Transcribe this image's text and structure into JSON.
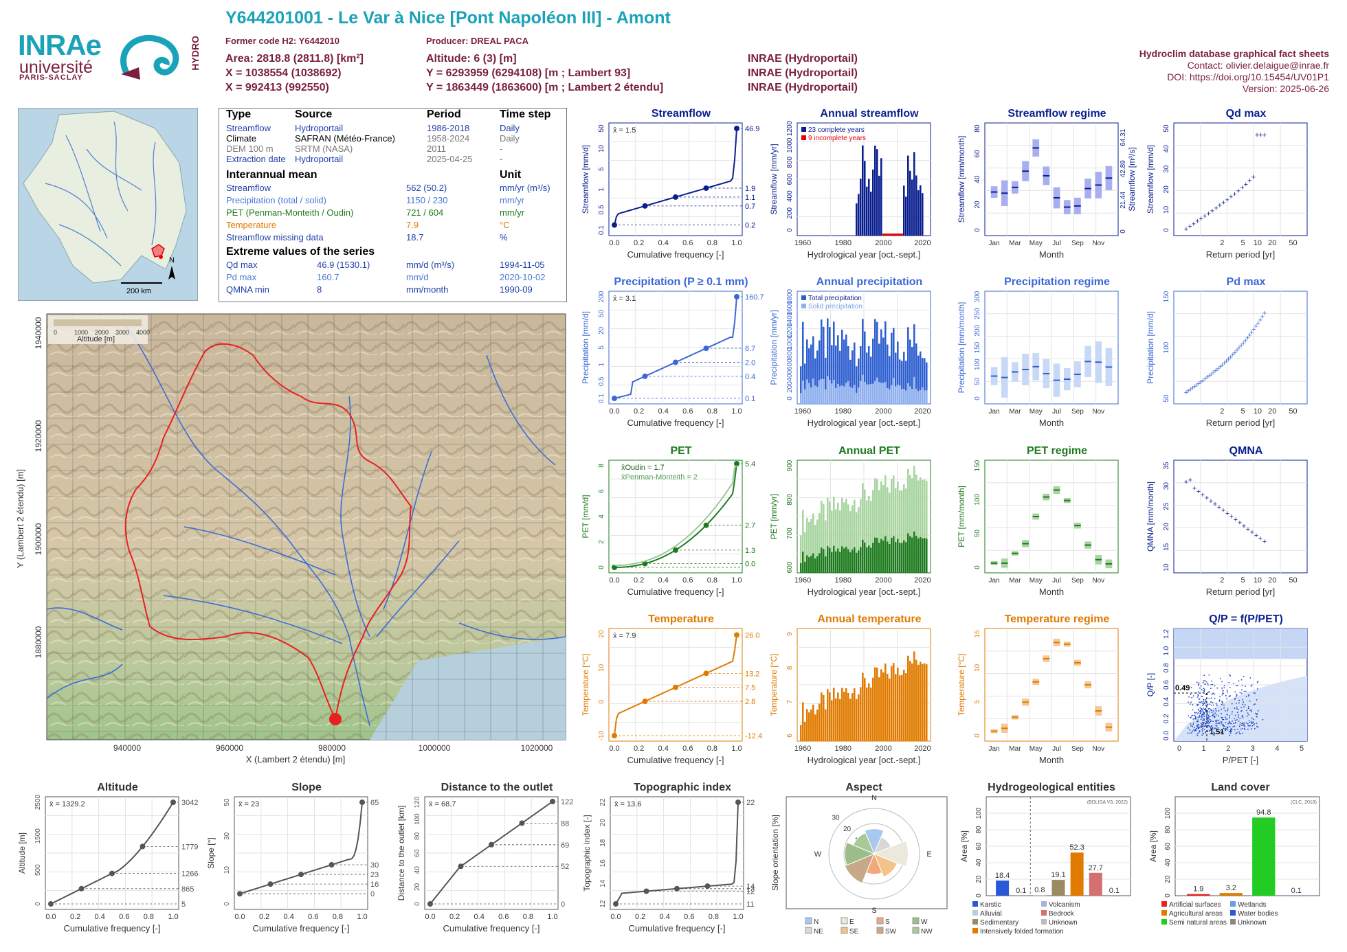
{
  "header": {
    "title": "Y644201001 - Le Var à Nice [Pont Napoléon III] - Amont",
    "former_code": "Former code H2: Y6442010",
    "producer": "Producer: DREAL PACA",
    "area": "Area: 2818.8 (2811.8) [km²]",
    "altitude": "Altitude: 6 (3) [m]",
    "x93": "X = 1038554 (1038692)",
    "y93": "Y = 6293959 (6294108) [m ; Lambert 93]",
    "x2e": "X = 992413 (992550)",
    "y2e": "Y = 1863449 (1863600) [m ; Lambert 2 étendu]",
    "source1": "INRAE (Hydroportail)",
    "source2": "INRAE (Hydroportail)",
    "source3": "INRAE (Hydroportail)",
    "right_title": "Hydroclim database graphical fact sheets",
    "contact": "Contact: olivier.delaigue@inrae.fr",
    "doi": "DOI: https://doi.org/10.15454/UV01P1",
    "version": "Version: 2025-06-26",
    "logo_inrae": "INRAe",
    "logo_univ": "université",
    "logo_ps": "PARIS-SACLAY",
    "logo_hydro": "HYDRO"
  },
  "info_table": {
    "col_type": "Type",
    "col_source": "Source",
    "col_period": "Period",
    "col_step": "Time step",
    "rows": [
      {
        "type": "Streamflow",
        "source": "Hydroportail",
        "period": "1986-2018",
        "step": "Daily",
        "color": "#1f3fa8"
      },
      {
        "type": "Climate",
        "source": "SAFRAN (Météo-France)",
        "period": "1958-2024",
        "step": "Daily",
        "color": "#000000"
      },
      {
        "type": "DEM 100 m",
        "source": "SRTM (NASA)",
        "period": "2011",
        "step": "-",
        "color": "#777777"
      },
      {
        "type": "Extraction date",
        "source": "Hydroportail",
        "period": "2025-04-25",
        "step": "-",
        "color": "#1f3fa8"
      }
    ],
    "interannual_title": "Interannual mean",
    "unit_title": "Unit",
    "means": [
      {
        "label": "Streamflow",
        "value": "562 (50.2)",
        "unit": "mm/yr (m³/s)",
        "color": "#1f3fa8"
      },
      {
        "label": "Precipitation (total / solid)",
        "value": "1150 / 230",
        "unit": "mm/yr",
        "color": "#4a78d8"
      },
      {
        "label": "PET (Penman-Monteith / Oudin)",
        "value": "721 / 604",
        "unit": "mm/yr",
        "color": "#1e7a1e"
      },
      {
        "label": "Temperature",
        "value": "7.9",
        "unit": "°C",
        "color": "#e07b00"
      },
      {
        "label": "Streamflow missing data",
        "value": "18.7",
        "unit": "%",
        "color": "#1f3fa8"
      }
    ],
    "extreme_title": "Extreme values of the series",
    "extremes": [
      {
        "label": "Qd max",
        "value": "46.9 (1530.1)",
        "unit": "mm/d (m³/s)",
        "date": "1994-11-05",
        "color": "#1f3fa8"
      },
      {
        "label": "Pd max",
        "value": "160.7",
        "unit": "mm/d",
        "date": "2020-10-02",
        "color": "#4a78d8"
      },
      {
        "label": "QMNA min",
        "value": "8",
        "unit": "mm/month",
        "date": "1990-09",
        "color": "#1f3fa8"
      }
    ]
  },
  "overview_map": {
    "scale": "200 km",
    "north": "N"
  },
  "catchment_map": {
    "xlabel": "X (Lambert 2 étendu) [m]",
    "ylabel": "Y (Lambert 2 étendu) [m]",
    "xticks": [
      "940000",
      "960000",
      "980000",
      "1000000",
      "1020000"
    ],
    "yticks": [
      "1940000",
      "1920000",
      "1900000",
      "1880000"
    ],
    "legend_title": "Altitude [m]",
    "legend_ticks": [
      "0",
      "1000",
      "2000",
      "3000",
      "4000"
    ]
  },
  "chart_data": [
    {
      "id": "streamflow_fdc",
      "type": "line",
      "title": "Streamflow",
      "xlabel": "Cumulative frequency [-]",
      "ylabel": "Streamflow [mm/d]",
      "mean": "x̄ = 1.5",
      "yticks": [
        "0.1",
        "0.5",
        "1",
        "5",
        "10",
        "50"
      ],
      "right_ticks": [
        "46.9",
        "1.9",
        "1.1",
        "0.7",
        "0.2"
      ],
      "xticks": [
        "0.0",
        "0.2",
        "0.4",
        "0.6",
        "0.8",
        "1.0"
      ],
      "color": "#0a1f8f"
    },
    {
      "id": "annual_streamflow",
      "type": "bar",
      "title": "Annual streamflow",
      "xlabel": "Hydrological year [oct.-sept.]",
      "ylabel": "Streamflow [mm/yr]",
      "yticks": [
        "0",
        "200",
        "400",
        "600",
        "800",
        "1000",
        "1200"
      ],
      "xticks": [
        "1960",
        "1980",
        "2000",
        "2020"
      ],
      "legend": [
        "23 complete years",
        "9 incomplete years"
      ],
      "color": "#0a1f8f"
    },
    {
      "id": "streamflow_regime",
      "type": "bar",
      "title": "Streamflow regime",
      "xlabel": "Month",
      "ylabel": "Streamflow [mm/month]",
      "yticks": [
        "0",
        "20",
        "40",
        "60",
        "80"
      ],
      "right_ticks": [
        "0",
        "21.44",
        "42.89",
        "64.31"
      ],
      "right_label": "Streamflow [m³/s]",
      "months": [
        "Jan",
        "Mar",
        "May",
        "Jul",
        "Sep",
        "Nov"
      ],
      "values": [
        34,
        33,
        38,
        52,
        72,
        48,
        29,
        21,
        22,
        37,
        40,
        46
      ],
      "color": "#0a1f8f"
    },
    {
      "id": "qd_max",
      "type": "scatter",
      "title": "Qd max",
      "xlabel": "Return period [yr]",
      "ylabel": "Streamflow [mm/d]",
      "yticks": [
        "0",
        "10",
        "20",
        "30",
        "40",
        "50"
      ],
      "xticks": [
        "2",
        "5",
        "10",
        "20",
        "50"
      ],
      "color": "#0a1f8f"
    },
    {
      "id": "precip_fdc",
      "type": "line",
      "title": "Precipitation (P ≥ 0.1 mm)",
      "xlabel": "Cumulative frequency [-]",
      "ylabel": "Precipitation [mm/d]",
      "mean": "x̄ = 3.1",
      "yticks": [
        "0.1",
        "0.5",
        "1",
        "5",
        "20",
        "50",
        "200"
      ],
      "right_ticks": [
        "160.7",
        "6.7",
        "2.0",
        "0.4",
        "0.1"
      ],
      "xticks": [
        "0.0",
        "0.2",
        "0.4",
        "0.6",
        "0.8",
        "1.0"
      ],
      "color": "#3b68d6"
    },
    {
      "id": "annual_precip",
      "type": "bar",
      "title": "Annual precipitation",
      "xlabel": "Hydrological year [oct.-sept.]",
      "ylabel": "Precipitation [mm/yr]",
      "yticks": [
        "0",
        "200",
        "400",
        "600",
        "800",
        "1000",
        "1200",
        "1400",
        "1600",
        "1800"
      ],
      "xticks": [
        "1960",
        "1980",
        "2000",
        "2020"
      ],
      "legend": [
        "Total precipitation",
        "Solid precipitation"
      ],
      "color": "#3b68d6"
    },
    {
      "id": "precip_regime",
      "type": "bar",
      "title": "Precipitation regime",
      "xlabel": "Month",
      "ylabel": "Precipitation [mm/month]",
      "yticks": [
        "0",
        "50",
        "100",
        "150",
        "200",
        "250",
        "300"
      ],
      "months": [
        "Jan",
        "Mar",
        "May",
        "Jul",
        "Sep",
        "Nov"
      ],
      "values": [
        68,
        64,
        80,
        87,
        95,
        75,
        56,
        59,
        73,
        110,
        108,
        94
      ],
      "color": "#3b68d6"
    },
    {
      "id": "pd_max",
      "type": "scatter",
      "title": "Pd max",
      "xlabel": "Return period [yr]",
      "ylabel": "Precipitation [mm/d]",
      "yticks": [
        "50",
        "100",
        "150"
      ],
      "xticks": [
        "2",
        "5",
        "10",
        "20",
        "50"
      ],
      "color": "#3b68d6"
    },
    {
      "id": "pet_fdc",
      "type": "line",
      "title": "PET",
      "xlabel": "Cumulative frequency [-]",
      "ylabel": "PET [mm/d]",
      "mean_oudin": "x̄Oudin = 1.7",
      "mean_pm": "x̄Penman-Monteith = 2",
      "yticks": [
        "0",
        "2",
        "4",
        "6",
        "8"
      ],
      "right_ticks": [
        "5.4",
        "2.7",
        "1.3",
        "0.0"
      ],
      "xticks": [
        "0.0",
        "0.2",
        "0.4",
        "0.6",
        "0.8",
        "1.0"
      ],
      "color": "#1e7a1e"
    },
    {
      "id": "annual_pet",
      "type": "bar",
      "title": "Annual PET",
      "xlabel": "Hydrological year [oct.-sept.]",
      "ylabel": "PET [mm/yr]",
      "yticks": [
        "600",
        "700",
        "800",
        "900"
      ],
      "xticks": [
        "1960",
        "1980",
        "2000",
        "2020"
      ],
      "color": "#1e7a1e"
    },
    {
      "id": "pet_regime",
      "type": "bar",
      "title": "PET regime",
      "xlabel": "Month",
      "ylabel": "PET [mm/month]",
      "yticks": [
        "0",
        "50",
        "100",
        "150"
      ],
      "months": [
        "Jan",
        "Mar",
        "May",
        "Jul",
        "Sep",
        "Nov"
      ],
      "values": [
        8,
        8,
        22,
        36,
        75,
        103,
        113,
        98,
        62,
        34,
        13,
        7
      ],
      "color": "#1e7a1e"
    },
    {
      "id": "qmna",
      "type": "scatter",
      "title": "QMNA",
      "xlabel": "Return period [yr]",
      "ylabel": "QMNA [mm/month]",
      "yticks": [
        "10",
        "15",
        "20",
        "25",
        "30",
        "35"
      ],
      "xticks": [
        "2",
        "5",
        "10",
        "20",
        "50"
      ],
      "color": "#0a1f8f"
    },
    {
      "id": "temp_fdc",
      "type": "line",
      "title": "Temperature",
      "xlabel": "Cumulative frequency [-]",
      "ylabel": "Temperature [°C]",
      "mean": "x̄ = 7.9",
      "yticks": [
        "-10",
        "0",
        "10",
        "20"
      ],
      "right_ticks": [
        "26.0",
        "13.2",
        "7.5",
        "2.8",
        "-12.4"
      ],
      "xticks": [
        "0.0",
        "0.2",
        "0.4",
        "0.6",
        "0.8",
        "1.0"
      ],
      "color": "#e07b00"
    },
    {
      "id": "annual_temp",
      "type": "bar",
      "title": "Annual temperature",
      "xlabel": "Hydrological year [oct.-sept.]",
      "ylabel": "Temperature [°C]",
      "yticks": [
        "6",
        "7",
        "8",
        "9"
      ],
      "xticks": [
        "1960",
        "1980",
        "2000",
        "2020"
      ],
      "color": "#e07b00"
    },
    {
      "id": "temp_regime",
      "type": "bar",
      "title": "Temperature regime",
      "xlabel": "Month",
      "ylabel": "Temperature [°C]",
      "yticks": [
        "0",
        "5",
        "10",
        "15"
      ],
      "months": [
        "Jan",
        "Mar",
        "May",
        "Jul",
        "Sep",
        "Nov"
      ],
      "values": [
        1,
        1.5,
        3.4,
        6,
        9.5,
        13.5,
        16.3,
        16,
        12.8,
        9,
        4.5,
        1.7
      ],
      "color": "#e07b00"
    },
    {
      "id": "qp",
      "type": "scatter",
      "title": "Q/P = f(P/PET)",
      "xlabel": "P/PET [-]",
      "ylabel": "Q/P [-]",
      "yticks": [
        "0.0",
        "0.2",
        "0.4",
        "0.6",
        "0.8",
        "1.0",
        "1.2"
      ],
      "xticks": [
        "0",
        "1",
        "2",
        "3",
        "4",
        "5"
      ],
      "ann_y": "0.49",
      "ann_x": "1.51",
      "color": "#0a1f8f"
    },
    {
      "id": "altitude",
      "type": "line",
      "title": "Altitude",
      "xlabel": "Cumulative frequency [-]",
      "ylabel": "Altitude [m]",
      "mean": "x̄ = 1329.2",
      "yticks": [
        "0",
        "500",
        "1500",
        "2500"
      ],
      "right_ticks": [
        "3042",
        "1779",
        "1266",
        "865",
        "5"
      ],
      "xticks": [
        "0.0",
        "0.2",
        "0.4",
        "0.6",
        "0.8",
        "1.0"
      ],
      "color": "#555555"
    },
    {
      "id": "slope",
      "type": "line",
      "title": "Slope",
      "xlabel": "Cumulative frequency [-]",
      "ylabel": "Slope [°]",
      "mean": "x̄ = 23",
      "yticks": [
        "0",
        "10",
        "30",
        "50"
      ],
      "right_ticks": [
        "65",
        "30",
        "23",
        "16",
        "0"
      ],
      "xticks": [
        "0.0",
        "0.2",
        "0.4",
        "0.6",
        "0.8",
        "1.0"
      ],
      "color": "#555555"
    },
    {
      "id": "distance",
      "type": "line",
      "title": "Distance to the outlet",
      "xlabel": "Cumulative frequency [-]",
      "ylabel": "Distance to the outlet [km]",
      "mean": "x̄ = 68.7",
      "yticks": [
        "0",
        "20",
        "40",
        "60",
        "80",
        "100",
        "120"
      ],
      "right_ticks": [
        "122",
        "88",
        "69",
        "52",
        "0"
      ],
      "xticks": [
        "0.0",
        "0.2",
        "0.4",
        "0.6",
        "0.8",
        "1.0"
      ],
      "color": "#555555"
    },
    {
      "id": "topo",
      "type": "line",
      "title": "Topographic index",
      "xlabel": "Cumulative frequency [-]",
      "ylabel": "Topographic index [-]",
      "mean": "x̄ = 13.6",
      "yticks": [
        "12",
        "14",
        "16",
        "18",
        "20",
        "22"
      ],
      "right_ticks": [
        "22",
        "14",
        "13",
        "12",
        "11"
      ],
      "xticks": [
        "0.0",
        "0.2",
        "0.4",
        "0.6",
        "0.8",
        "1.0"
      ],
      "color": "#555555"
    },
    {
      "id": "aspect",
      "type": "pie",
      "title": "Aspect",
      "ylabel": "Slope orientation [%]",
      "dirs": [
        "N",
        "E",
        "S",
        "W"
      ],
      "rings": [
        "10",
        "20",
        "30"
      ],
      "legend": [
        "N",
        "E",
        "S",
        "W",
        "NE",
        "SE",
        "SW",
        "NW"
      ]
    },
    {
      "id": "hydrogeo",
      "type": "bar",
      "title": "Hydrogeological entities",
      "ylabel": "Area [%]",
      "source": "(BDLISA V3, 2022)",
      "yticks": [
        "0",
        "20",
        "40",
        "60",
        "80",
        "100"
      ],
      "values": [
        18.4,
        0.1,
        0.8,
        19.1,
        52.3,
        27.7,
        0.1
      ],
      "legend": [
        "Karstic",
        "Volcanism",
        "Alluvial",
        "Bedrock",
        "Sedimentary",
        "Unknown",
        "Intensively folded formation"
      ]
    },
    {
      "id": "landcover",
      "type": "bar",
      "title": "Land cover",
      "ylabel": "Area [%]",
      "source": "(CLC, 2018)",
      "yticks": [
        "0",
        "20",
        "40",
        "60",
        "80",
        "100"
      ],
      "values": [
        1.9,
        3.2,
        94.8,
        0.1
      ],
      "legend": [
        "Artificial surfaces",
        "Wetlands",
        "Agricultural areas",
        "Water bodies",
        "Semi natural areas",
        "Unknown"
      ]
    }
  ]
}
